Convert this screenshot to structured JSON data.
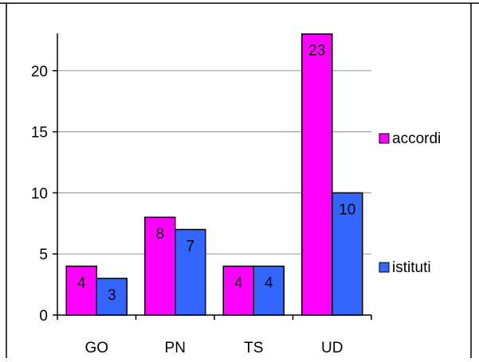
{
  "chart_data": {
    "type": "bar",
    "title": "",
    "xlabel": "",
    "ylabel": "",
    "categories": [
      "GO",
      "PN",
      "TS",
      "UD"
    ],
    "series": [
      {
        "name": "accordi",
        "values": [
          4,
          8,
          4,
          23
        ],
        "color": "#ff00ff"
      },
      {
        "name": "istituti",
        "values": [
          3,
          7,
          4,
          10
        ],
        "color": "#3366ff"
      }
    ],
    "ylim": [
      0,
      25
    ],
    "yticks": [
      0,
      5,
      10,
      15,
      20
    ],
    "grid": true,
    "legend": "right",
    "data_labels": true
  }
}
